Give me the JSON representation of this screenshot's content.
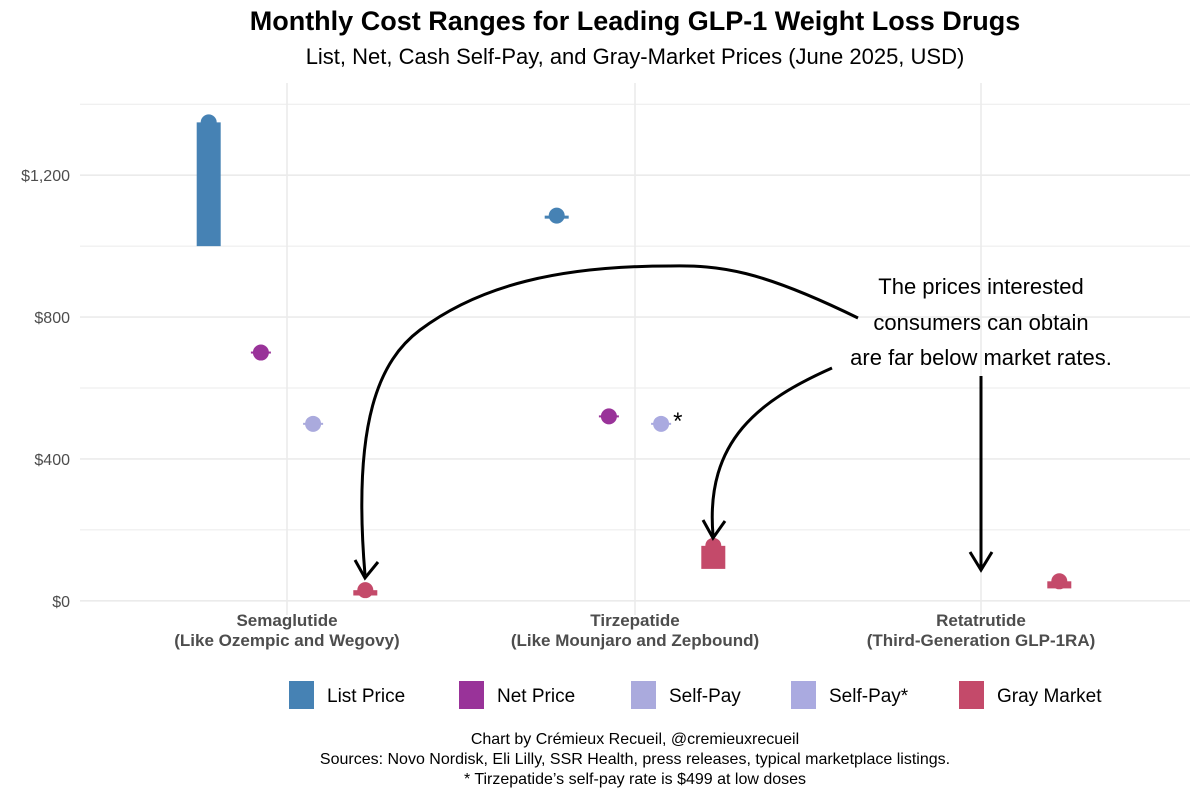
{
  "chart_data": {
    "type": "scatter",
    "title": "Monthly Cost Ranges for Leading GLP-1 Weight Loss Drugs",
    "subtitle": "List, Net, Cash Self-Pay, and Gray-Market Prices (June 2025, USD)",
    "ylim": [
      -40,
      1460
    ],
    "yticks": [
      {
        "value": 0,
        "label": "$0"
      },
      {
        "value": 400,
        "label": "$400"
      },
      {
        "value": 800,
        "label": "$800"
      },
      {
        "value": 1200,
        "label": "$1,200"
      }
    ],
    "grid": true,
    "categories": [
      {
        "line1": "Semaglutide",
        "line2": "(Like Ozempic and Wegovy)"
      },
      {
        "line1": "Tirzepatide",
        "line2": "(Like Mounjaro and Zepbound)"
      },
      {
        "line1": "Retatrutide",
        "line2": "(Third-Generation GLP-1RA)"
      }
    ],
    "series": [
      {
        "name": "List Price",
        "color": "#4682b4",
        "offset": -0.225,
        "points": [
          {
            "cat": 0,
            "low": 1000,
            "high": 1349,
            "value": 1349
          },
          {
            "cat": 1,
            "low": 1080,
            "high": 1086,
            "value": 1086
          }
        ]
      },
      {
        "name": "Net Price",
        "color": "#993399",
        "offset": -0.075,
        "points": [
          {
            "cat": 0,
            "low": 700,
            "high": 700,
            "value": 700
          },
          {
            "cat": 1,
            "low": 520,
            "high": 520,
            "value": 520
          }
        ]
      },
      {
        "name": "Self-Pay",
        "color": "#aaaadd",
        "offset": 0.075,
        "points": [
          {
            "cat": 0,
            "low": 499,
            "high": 499,
            "value": 499
          }
        ]
      },
      {
        "name": "Self-Pay*",
        "color": "#aaaae0",
        "offset": 0.075,
        "points": [
          {
            "cat": 1,
            "low": 499,
            "high": 499,
            "value": 499
          }
        ]
      },
      {
        "name": "Gray Market",
        "color": "#c44a6a",
        "offset": 0.225,
        "points": [
          {
            "cat": 0,
            "low": 15,
            "high": 30,
            "value": 30
          },
          {
            "cat": 1,
            "low": 90,
            "high": 155,
            "value": 155
          },
          {
            "cat": 2,
            "low": 35,
            "high": 55,
            "value": 55
          }
        ]
      }
    ],
    "asterisk": "*",
    "legend_placement": "bottom",
    "annotation": [
      "The prices interested",
      "consumers can obtain",
      "are far below market rates."
    ]
  },
  "caption": {
    "line1": "Chart by Crémieux Recueil, @cremieuxrecueil",
    "line2": "Sources: Novo Nordisk, Eli Lilly, SSR Health, press releases, typical marketplace listings.",
    "line3": "* Tirzepatide’s self-pay rate is $499 at low doses"
  }
}
